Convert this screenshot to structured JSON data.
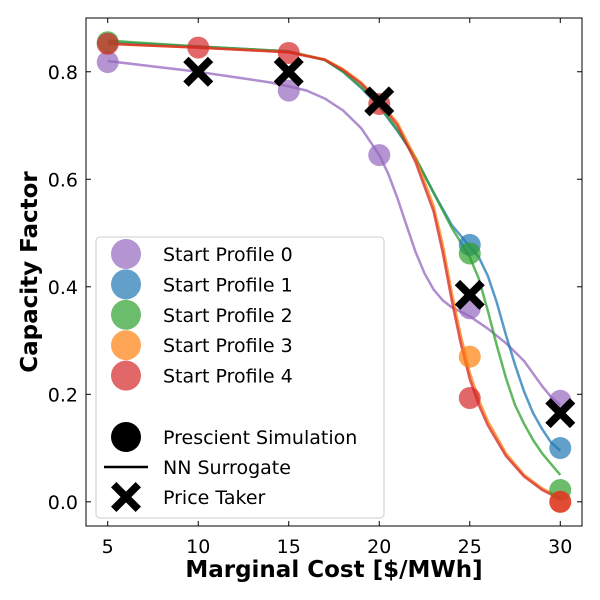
{
  "chart_data": {
    "type": "scatter",
    "title": "",
    "xlabel": "Marginal Cost [$/MWh]",
    "ylabel": "Capacity Factor",
    "xlim": [
      3.8,
      31.2
    ],
    "ylim": [
      -0.045,
      0.9
    ],
    "xticks": [
      5,
      10,
      15,
      20,
      25,
      30
    ],
    "yticks": [
      0.0,
      0.2,
      0.4,
      0.6,
      0.8
    ],
    "ytick_labels": [
      "0.0",
      "0.2",
      "0.4",
      "0.6",
      "0.8"
    ],
    "grid": false,
    "legend_position": "center-left",
    "x": [
      5,
      10,
      15,
      20,
      25,
      30
    ],
    "series": [
      {
        "name": "Start Profile 0",
        "color": "#9467bd",
        "sim_values": [
          0.818,
          null,
          0.765,
          0.645,
          0.36,
          0.188
        ],
        "nn_curve": [
          [
            5,
            0.82
          ],
          [
            8,
            0.808
          ],
          [
            10,
            0.8
          ],
          [
            12,
            0.79
          ],
          [
            14,
            0.78
          ],
          [
            15,
            0.773
          ],
          [
            16,
            0.765
          ],
          [
            17,
            0.75
          ],
          [
            18,
            0.728
          ],
          [
            19,
            0.695
          ],
          [
            20,
            0.645
          ],
          [
            20.5,
            0.61
          ],
          [
            21,
            0.565
          ],
          [
            21.5,
            0.515
          ],
          [
            22,
            0.465
          ],
          [
            22.5,
            0.425
          ],
          [
            23,
            0.395
          ],
          [
            23.5,
            0.375
          ],
          [
            24,
            0.362
          ],
          [
            25,
            0.345
          ],
          [
            26,
            0.322
          ],
          [
            27,
            0.295
          ],
          [
            28,
            0.262
          ],
          [
            29,
            0.215
          ],
          [
            29.5,
            0.195
          ],
          [
            30,
            0.18
          ]
        ]
      },
      {
        "name": "Start Profile 1",
        "color": "#1f77b4",
        "sim_values": [
          null,
          null,
          null,
          null,
          0.478,
          0.1
        ],
        "nn_curve": [
          [
            5,
            0.855
          ],
          [
            10,
            0.847
          ],
          [
            15,
            0.838
          ],
          [
            17,
            0.822
          ],
          [
            18,
            0.8
          ],
          [
            19,
            0.77
          ],
          [
            20,
            0.735
          ],
          [
            21,
            0.69
          ],
          [
            22,
            0.64
          ],
          [
            23,
            0.575
          ],
          [
            24,
            0.515
          ],
          [
            25,
            0.475
          ],
          [
            25.5,
            0.455
          ],
          [
            26,
            0.42
          ],
          [
            26.5,
            0.37
          ],
          [
            27,
            0.31
          ],
          [
            27.5,
            0.255
          ],
          [
            28,
            0.205
          ],
          [
            28.5,
            0.165
          ],
          [
            29,
            0.135
          ],
          [
            29.5,
            0.11
          ],
          [
            30,
            0.095
          ]
        ]
      },
      {
        "name": "Start Profile 2",
        "color": "#2ca02c",
        "sim_values": [
          0.855,
          null,
          null,
          null,
          0.462,
          0.022
        ],
        "nn_curve": [
          [
            5,
            0.858
          ],
          [
            10,
            0.847
          ],
          [
            15,
            0.838
          ],
          [
            17,
            0.822
          ],
          [
            18,
            0.8
          ],
          [
            19,
            0.772
          ],
          [
            20,
            0.737
          ],
          [
            21,
            0.692
          ],
          [
            22,
            0.64
          ],
          [
            23,
            0.575
          ],
          [
            24,
            0.51
          ],
          [
            25,
            0.455
          ],
          [
            25.5,
            0.415
          ],
          [
            26,
            0.355
          ],
          [
            26.5,
            0.29
          ],
          [
            27,
            0.23
          ],
          [
            27.5,
            0.18
          ],
          [
            28,
            0.145
          ],
          [
            28.5,
            0.115
          ],
          [
            29,
            0.09
          ],
          [
            29.5,
            0.07
          ],
          [
            30,
            0.05
          ]
        ]
      },
      {
        "name": "Start Profile 3",
        "color": "#ff7f0e",
        "sim_values": [
          null,
          null,
          null,
          null,
          0.27,
          0.0
        ],
        "nn_curve": [
          [
            5,
            0.852
          ],
          [
            10,
            0.845
          ],
          [
            15,
            0.837
          ],
          [
            17,
            0.823
          ],
          [
            18,
            0.805
          ],
          [
            19,
            0.78
          ],
          [
            20,
            0.745
          ],
          [
            21,
            0.705
          ],
          [
            22,
            0.64
          ],
          [
            23,
            0.55
          ],
          [
            23.5,
            0.48
          ],
          [
            24,
            0.39
          ],
          [
            24.5,
            0.31
          ],
          [
            25,
            0.24
          ],
          [
            25.5,
            0.19
          ],
          [
            26,
            0.15
          ],
          [
            27,
            0.09
          ],
          [
            28,
            0.05
          ],
          [
            29,
            0.025
          ],
          [
            30,
            0.008
          ]
        ]
      },
      {
        "name": "Start Profile 4",
        "color": "#d62728",
        "sim_values": [
          0.852,
          0.845,
          0.835,
          0.74,
          0.193,
          0.0
        ],
        "nn_curve": [
          [
            5,
            0.852
          ],
          [
            10,
            0.845
          ],
          [
            15,
            0.836
          ],
          [
            17,
            0.822
          ],
          [
            18,
            0.803
          ],
          [
            19,
            0.778
          ],
          [
            20,
            0.743
          ],
          [
            21,
            0.7
          ],
          [
            22,
            0.632
          ],
          [
            23,
            0.54
          ],
          [
            23.5,
            0.465
          ],
          [
            24,
            0.375
          ],
          [
            24.5,
            0.295
          ],
          [
            25,
            0.228
          ],
          [
            25.5,
            0.18
          ],
          [
            26,
            0.142
          ],
          [
            27,
            0.085
          ],
          [
            28,
            0.047
          ],
          [
            29,
            0.022
          ],
          [
            30,
            0.005
          ]
        ]
      }
    ],
    "price_taker": {
      "name": "Price Taker",
      "color": "#000000",
      "values": [
        null,
        0.8,
        0.8,
        0.745,
        0.385,
        0.165
      ]
    },
    "legend": {
      "series_entries": [
        "Start Profile 0",
        "Start Profile 1",
        "Start Profile 2",
        "Start Profile 3",
        "Start Profile 4"
      ],
      "marker_entries": [
        {
          "label": "Prescient Simulation",
          "symbol": "circle"
        },
        {
          "label": "NN Surrogate",
          "symbol": "line"
        },
        {
          "label": "Price Taker",
          "symbol": "x"
        }
      ]
    }
  }
}
